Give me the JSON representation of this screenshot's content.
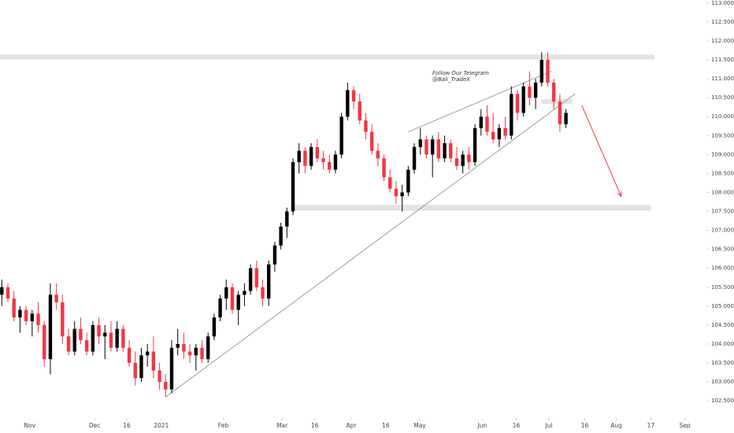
{
  "chart_data": {
    "type": "candlestick",
    "annotation": [
      "Follow Our Telegram",
      "@Bali_TradeX"
    ],
    "up_color": "#000000",
    "down_color": "#f23645",
    "xlim": [
      -0.3,
      115.9
    ],
    "ylim": [
      102.17,
      113.08
    ],
    "xticks": [
      {
        "value": 4.6,
        "label": "Nov"
      },
      {
        "value": 15.3,
        "label": "Dec"
      },
      {
        "value": 20.6,
        "label": "16"
      },
      {
        "value": 26.3,
        "label": "2021"
      },
      {
        "value": 36.5,
        "label": "Feb"
      },
      {
        "value": 46.2,
        "label": "Mar"
      },
      {
        "value": 51.6,
        "label": "16"
      },
      {
        "value": 57.6,
        "label": "Apr"
      },
      {
        "value": 63.3,
        "label": "16"
      },
      {
        "value": 68.9,
        "label": "May"
      },
      {
        "value": 79.2,
        "label": "Jun"
      },
      {
        "value": 84.8,
        "label": "16"
      },
      {
        "value": 90.2,
        "label": "Jul"
      },
      {
        "value": 96.1,
        "label": "16"
      },
      {
        "value": 101.3,
        "label": "Aug"
      },
      {
        "value": 107.0,
        "label": "17"
      },
      {
        "value": 112.6,
        "label": "Sep"
      }
    ],
    "yticks": [
      {
        "value": 102.5,
        "label": "102.500"
      },
      {
        "value": 103,
        "label": "103.000"
      },
      {
        "value": 103.5,
        "label": "103.500"
      },
      {
        "value": 104,
        "label": "104.000"
      },
      {
        "value": 104.5,
        "label": "104.500"
      },
      {
        "value": 105,
        "label": "105.000"
      },
      {
        "value": 105.5,
        "label": "105.500"
      },
      {
        "value": 106,
        "label": "106.000"
      },
      {
        "value": 106.5,
        "label": "106.500"
      },
      {
        "value": 107,
        "label": "107.000"
      },
      {
        "value": 107.5,
        "label": "107.500"
      },
      {
        "value": 108,
        "label": "108.000"
      },
      {
        "value": 108.5,
        "label": "108.500"
      },
      {
        "value": 109,
        "label": "109.000"
      },
      {
        "value": 109.5,
        "label": "109.500"
      },
      {
        "value": 110,
        "label": "110.000"
      },
      {
        "value": 110.5,
        "label": "110.500"
      },
      {
        "value": 111,
        "label": "111.000"
      },
      {
        "value": 111.5,
        "label": "111.500"
      },
      {
        "value": 112,
        "label": "112.000"
      },
      {
        "value": 112.5,
        "label": "112.500"
      },
      {
        "value": 113,
        "label": "113.000"
      }
    ],
    "ohlc": [
      [
        105.3,
        105.7,
        105.0,
        105.5
      ],
      [
        105.5,
        105.6,
        105.1,
        105.2
      ],
      [
        105.2,
        105.4,
        104.6,
        104.7
      ],
      [
        104.7,
        105.0,
        104.3,
        104.9
      ],
      [
        104.9,
        105.0,
        104.5,
        104.6
      ],
      [
        104.6,
        104.9,
        104.2,
        104.8
      ],
      [
        104.8,
        105.1,
        104.3,
        104.5
      ],
      [
        104.5,
        104.6,
        103.4,
        103.6
      ],
      [
        103.6,
        105.6,
        103.2,
        105.3
      ],
      [
        105.3,
        105.6,
        104.9,
        105.1
      ],
      [
        105.1,
        105.3,
        104.0,
        104.2
      ],
      [
        104.2,
        104.4,
        103.7,
        103.8
      ],
      [
        103.8,
        104.6,
        103.7,
        104.4
      ],
      [
        104.4,
        104.7,
        104.0,
        104.1
      ],
      [
        104.1,
        104.3,
        103.7,
        103.8
      ],
      [
        103.8,
        104.6,
        103.7,
        104.5
      ],
      [
        104.5,
        104.7,
        104.0,
        104.2
      ],
      [
        104.2,
        104.5,
        103.6,
        104.3
      ],
      [
        104.3,
        104.6,
        103.8,
        103.9
      ],
      [
        103.9,
        104.6,
        103.8,
        104.4
      ],
      [
        104.4,
        104.5,
        103.8,
        103.9
      ],
      [
        103.9,
        104.1,
        103.4,
        103.5
      ],
      [
        103.5,
        103.8,
        102.9,
        103.1
      ],
      [
        103.1,
        103.9,
        103.0,
        103.7
      ],
      [
        103.7,
        104.0,
        103.4,
        103.8
      ],
      [
        103.8,
        104.2,
        103.1,
        103.3
      ],
      [
        103.3,
        103.5,
        102.8,
        103.0
      ],
      [
        103.0,
        103.2,
        102.6,
        102.8
      ],
      [
        102.8,
        104.1,
        102.7,
        103.9
      ],
      [
        103.9,
        104.4,
        103.7,
        104.0
      ],
      [
        104.0,
        104.3,
        103.6,
        103.8
      ],
      [
        103.8,
        104.0,
        103.5,
        103.7
      ],
      [
        103.7,
        104.0,
        103.3,
        103.9
      ],
      [
        103.9,
        104.1,
        103.5,
        103.6
      ],
      [
        103.6,
        104.3,
        103.5,
        104.2
      ],
      [
        104.2,
        104.8,
        104.1,
        104.7
      ],
      [
        104.7,
        105.3,
        104.6,
        105.2
      ],
      [
        105.2,
        105.7,
        104.9,
        105.5
      ],
      [
        105.5,
        105.6,
        104.8,
        104.9
      ],
      [
        104.9,
        105.4,
        104.5,
        105.3
      ],
      [
        105.3,
        105.6,
        105.0,
        105.4
      ],
      [
        105.4,
        106.1,
        105.3,
        106.0
      ],
      [
        106.0,
        106.2,
        105.4,
        105.5
      ],
      [
        105.5,
        105.7,
        105.0,
        105.2
      ],
      [
        105.2,
        106.2,
        105.0,
        106.1
      ],
      [
        106.1,
        106.7,
        105.9,
        106.6
      ],
      [
        106.6,
        107.2,
        106.5,
        107.1
      ],
      [
        107.1,
        107.6,
        106.8,
        107.5
      ],
      [
        107.5,
        108.9,
        107.4,
        108.8
      ],
      [
        108.8,
        109.3,
        108.5,
        109.1
      ],
      [
        109.1,
        109.2,
        108.5,
        108.7
      ],
      [
        108.7,
        109.3,
        108.6,
        109.2
      ],
      [
        109.2,
        109.4,
        108.8,
        108.9
      ],
      [
        108.9,
        109.1,
        108.6,
        108.8
      ],
      [
        108.8,
        109.0,
        108.5,
        108.6
      ],
      [
        108.6,
        109.1,
        108.5,
        109.0
      ],
      [
        109.0,
        110.1,
        108.9,
        110.0
      ],
      [
        110.0,
        110.9,
        109.9,
        110.7
      ],
      [
        110.7,
        110.8,
        110.2,
        110.4
      ],
      [
        110.4,
        110.6,
        109.8,
        109.9
      ],
      [
        109.9,
        110.1,
        109.4,
        109.6
      ],
      [
        109.6,
        109.8,
        109.0,
        109.1
      ],
      [
        109.1,
        109.3,
        108.7,
        108.9
      ],
      [
        108.9,
        109.0,
        108.3,
        108.4
      ],
      [
        108.4,
        108.6,
        108.0,
        108.1
      ],
      [
        108.1,
        108.3,
        107.7,
        107.9
      ],
      [
        107.9,
        108.2,
        107.5,
        108.0
      ],
      [
        108.0,
        108.7,
        107.9,
        108.6
      ],
      [
        108.6,
        109.3,
        108.5,
        109.2
      ],
      [
        109.2,
        109.7,
        109.0,
        109.4
      ],
      [
        109.4,
        109.5,
        108.9,
        109.0
      ],
      [
        109.0,
        109.5,
        108.4,
        109.4
      ],
      [
        109.4,
        109.6,
        108.8,
        108.9
      ],
      [
        108.9,
        109.5,
        108.8,
        109.3
      ],
      [
        109.3,
        109.4,
        108.8,
        108.9
      ],
      [
        108.9,
        109.2,
        108.6,
        108.7
      ],
      [
        108.7,
        109.1,
        108.5,
        109.0
      ],
      [
        109.0,
        109.2,
        108.6,
        108.8
      ],
      [
        108.8,
        109.8,
        108.7,
        109.7
      ],
      [
        109.7,
        110.2,
        109.5,
        110.0
      ],
      [
        110.0,
        110.3,
        109.5,
        109.6
      ],
      [
        109.6,
        110.1,
        109.3,
        109.4
      ],
      [
        109.4,
        109.8,
        109.2,
        109.7
      ],
      [
        109.7,
        110.0,
        109.4,
        109.5
      ],
      [
        109.5,
        110.8,
        109.4,
        110.6
      ],
      [
        110.6,
        110.7,
        109.9,
        110.1
      ],
      [
        110.1,
        110.9,
        110.0,
        110.8
      ],
      [
        110.8,
        111.2,
        110.3,
        110.5
      ],
      [
        110.5,
        111.0,
        110.2,
        110.9
      ],
      [
        110.9,
        111.7,
        110.8,
        111.5
      ],
      [
        111.5,
        111.7,
        110.8,
        110.9
      ],
      [
        110.9,
        111.0,
        110.2,
        110.4
      ],
      [
        110.4,
        110.6,
        109.6,
        109.8
      ],
      [
        109.8,
        110.2,
        109.7,
        110.1
      ]
    ],
    "zones": [
      {
        "x": [
          -0.3,
          107.5
        ],
        "y": [
          111.52,
          111.63
        ]
      },
      {
        "x": [
          48,
          107
        ],
        "y": [
          107.53,
          107.66
        ]
      },
      {
        "x": [
          89,
          94
        ],
        "y": [
          110.35,
          110.45
        ]
      }
    ],
    "trendlines": [
      {
        "x": [
          27,
          94.5
        ],
        "y": [
          102.6,
          110.6
        ]
      },
      {
        "x": [
          67,
          90.6
        ],
        "y": [
          109.6,
          111.2
        ]
      }
    ],
    "arrow": {
      "x": [
        95.6,
        102.1
      ],
      "y": [
        110.3,
        107.9
      ],
      "color": "#f23645"
    }
  }
}
